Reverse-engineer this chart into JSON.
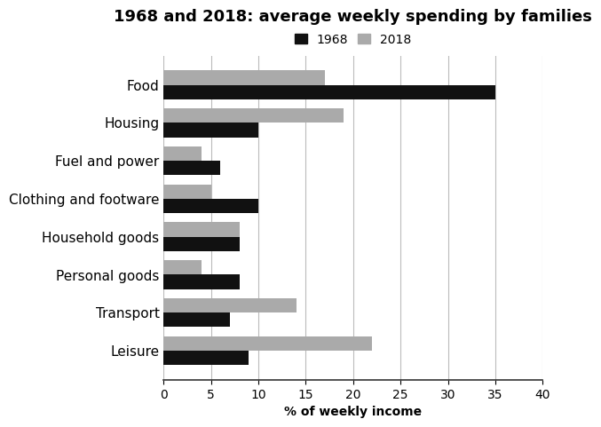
{
  "title": "1968 and 2018: average weekly spending by families",
  "xlabel": "% of weekly income",
  "categories": [
    "Food",
    "Housing",
    "Fuel and power",
    "Clothing and footware",
    "Household goods",
    "Personal goods",
    "Transport",
    "Leisure"
  ],
  "values_1968": [
    35,
    10,
    6,
    10,
    8,
    8,
    7,
    9
  ],
  "values_2018": [
    17,
    19,
    4,
    5,
    8,
    4,
    14,
    22
  ],
  "color_1968": "#111111",
  "color_2018": "#aaaaaa",
  "xlim": [
    0,
    40
  ],
  "xticks": [
    0,
    5,
    10,
    15,
    20,
    25,
    30,
    35,
    40
  ],
  "bar_height": 0.38,
  "legend_labels": [
    "1968",
    "2018"
  ],
  "background_color": "#ffffff",
  "grid_color": "#bbbbbb",
  "title_fontsize": 13,
  "label_fontsize": 10,
  "tick_fontsize": 10,
  "category_fontsize": 11
}
